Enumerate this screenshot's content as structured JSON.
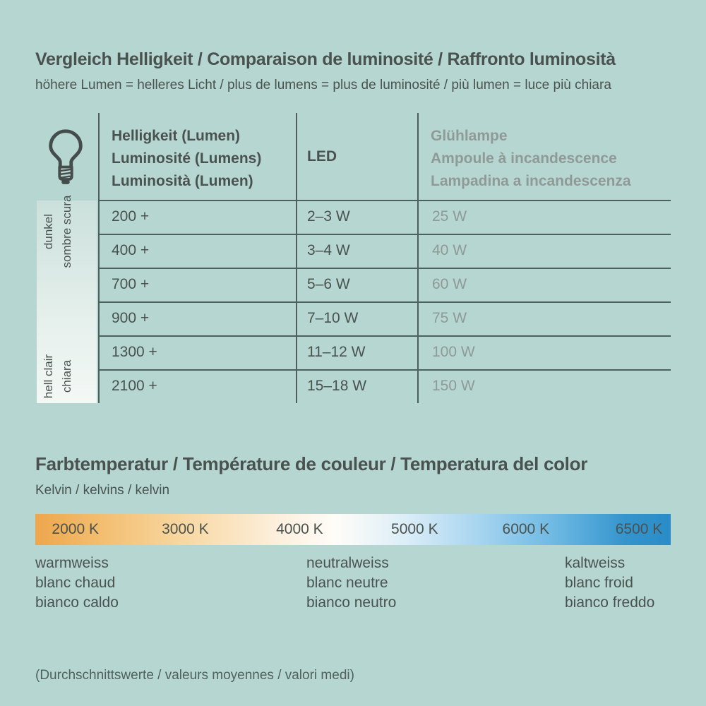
{
  "colors": {
    "background": "#b6d7d1",
    "text_dark": "#4a524f",
    "text_gray": "#8f9a96",
    "table_line": "#4f5f5c",
    "kelvin_gradient": [
      "#eda64c 0%",
      "#f2b967 8%",
      "#f8d9a4 24%",
      "#fcefdc 38%",
      "#fffdf8 47%",
      "#ddeef8 58%",
      "#a6d4ef 70%",
      "#6cb8e3 82%",
      "#3494cd 93%",
      "#2a8cc7 100%"
    ]
  },
  "brightness": {
    "title": "Vergleich Helligkeit / Comparaison de luminosité / Raffronto luminosità",
    "subtitle": "höhere Lumen = helleres Licht / plus de lumens = plus de luminosité / più lumen = luce più chiara",
    "table": {
      "lumen_header": [
        "Helligkeit (Lumen)",
        "Luminosité (Lumens)",
        "Luminosità (Lumen)"
      ],
      "led_header": "LED",
      "incandescent_header": [
        "Glühlampe",
        "Ampoule à incandescence",
        "Lampadina a incandescenza"
      ],
      "rows": [
        {
          "lumen": "200 +",
          "led": "2–3 W",
          "incandescent": "25 W"
        },
        {
          "lumen": "400 +",
          "led": "3–4 W",
          "incandescent": "40 W"
        },
        {
          "lumen": "700 +",
          "led": "5–6 W",
          "incandescent": "60 W"
        },
        {
          "lumen": "900 +",
          "led": "7–10 W",
          "incandescent": "75 W"
        },
        {
          "lumen": "1300 +",
          "led": "11–12 W",
          "incandescent": "100 W"
        },
        {
          "lumen": "2100 +",
          "led": "15–18 W",
          "incandescent": "150 W"
        }
      ],
      "scale_dark": [
        "dunkel",
        "sombre",
        "scura"
      ],
      "scale_light": [
        "hell",
        "clair",
        "chiara"
      ]
    }
  },
  "color_temperature": {
    "title": "Farbtemperatur / Température de couleur / Temperatura del color",
    "subtitle": "Kelvin / kelvins / kelvin",
    "ticks": [
      {
        "label": "2000 K",
        "pos": "6.3%"
      },
      {
        "label": "3000 K",
        "pos": "23.6%"
      },
      {
        "label": "4000 K",
        "pos": "41.6%"
      },
      {
        "label": "5000 K",
        "pos": "59.7%"
      },
      {
        "label": "6000 K",
        "pos": "77.2%"
      },
      {
        "label": "6500 K",
        "pos": "95%"
      }
    ],
    "labels": {
      "warm": [
        "warmweiss",
        "blanc chaud",
        "bianco caldo"
      ],
      "neutral": [
        "neutralweiss",
        "blanc neutre",
        "bianco neutro"
      ],
      "cold": [
        "kaltweiss",
        "blanc froid",
        "bianco freddo"
      ]
    }
  },
  "footer": "(Durchschnittswerte / valeurs moyennes / valori medi)"
}
